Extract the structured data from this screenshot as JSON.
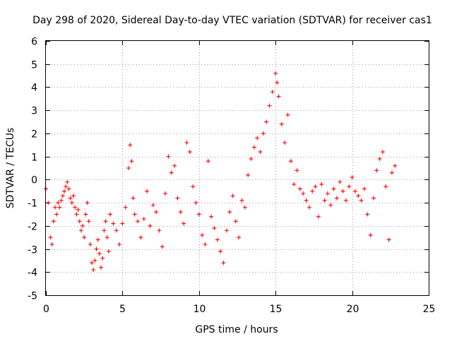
{
  "chart_data": {
    "type": "scatter",
    "title": "Day 298 of 2020, Sidereal Day-to-day VTEC variation (SDTVAR) for receiver cas1",
    "xlabel": "GPS time / hours",
    "ylabel": "SDTVAR / TECUs",
    "xlim": [
      0,
      25
    ],
    "ylim": [
      -5,
      6
    ],
    "xticks": [
      "0",
      "5",
      "10",
      "15",
      "20",
      "25"
    ],
    "yticks": [
      "-5",
      "-4",
      "-3",
      "-2",
      "-1",
      "0",
      "1",
      "2",
      "3",
      "4",
      "5",
      "6"
    ],
    "grid": true,
    "marker": "plus",
    "color": "#ff0000",
    "series": [
      {
        "name": "SDTVAR",
        "x": [
          0.0,
          0.15,
          0.3,
          0.4,
          0.5,
          0.6,
          0.7,
          0.8,
          0.9,
          1.0,
          1.1,
          1.2,
          1.3,
          1.4,
          1.5,
          1.6,
          1.7,
          1.8,
          1.9,
          2.0,
          2.1,
          2.2,
          2.3,
          2.4,
          2.5,
          2.6,
          2.7,
          2.8,
          2.9,
          3.0,
          3.1,
          3.2,
          3.3,
          3.4,
          3.5,
          3.6,
          3.7,
          3.8,
          3.9,
          4.0,
          4.1,
          4.2,
          4.4,
          4.6,
          4.8,
          5.0,
          5.2,
          5.4,
          5.5,
          5.6,
          5.7,
          5.8,
          6.0,
          6.2,
          6.4,
          6.6,
          6.8,
          7.0,
          7.2,
          7.4,
          7.6,
          7.8,
          8.0,
          8.2,
          8.4,
          8.6,
          8.8,
          9.0,
          9.2,
          9.4,
          9.6,
          9.8,
          10.0,
          10.2,
          10.4,
          10.6,
          10.8,
          11.0,
          11.2,
          11.4,
          11.6,
          11.8,
          12.0,
          12.2,
          12.4,
          12.6,
          12.8,
          13.0,
          13.2,
          13.4,
          13.6,
          13.8,
          14.0,
          14.2,
          14.4,
          14.6,
          14.8,
          15.0,
          15.1,
          15.2,
          15.4,
          15.6,
          15.8,
          16.0,
          16.2,
          16.4,
          16.6,
          16.8,
          17.0,
          17.2,
          17.4,
          17.6,
          17.8,
          18.0,
          18.2,
          18.4,
          18.6,
          18.8,
          19.0,
          19.2,
          19.4,
          19.6,
          19.8,
          20.0,
          20.2,
          20.4,
          20.6,
          20.8,
          21.0,
          21.2,
          21.4,
          21.6,
          21.8,
          22.0,
          22.2,
          22.4,
          22.6,
          22.8
        ],
        "y": [
          -0.4,
          -1.0,
          -2.5,
          -2.8,
          -1.8,
          -1.2,
          -1.5,
          -1.0,
          -1.2,
          -0.9,
          -0.7,
          -0.5,
          -0.3,
          -0.1,
          -0.4,
          -0.8,
          -1.0,
          -0.7,
          -1.2,
          -1.5,
          -1.3,
          -1.8,
          -2.2,
          -2.0,
          -2.5,
          -1.5,
          -1.0,
          -1.8,
          -2.8,
          -3.6,
          -3.9,
          -3.5,
          -3.0,
          -2.6,
          -3.2,
          -3.8,
          -3.4,
          -2.2,
          -1.8,
          -2.5,
          -3.1,
          -1.5,
          -1.9,
          -2.2,
          -2.8,
          -1.9,
          -1.2,
          0.5,
          1.5,
          0.8,
          -0.8,
          -1.5,
          -1.8,
          -2.5,
          -1.7,
          -0.5,
          -2.0,
          -1.1,
          -1.4,
          -2.2,
          -2.9,
          -0.6,
          1.0,
          0.3,
          0.6,
          -0.8,
          -1.4,
          -1.9,
          1.6,
          1.2,
          -0.3,
          -1.0,
          -1.5,
          -2.4,
          -2.8,
          0.8,
          -1.6,
          -2.1,
          -2.6,
          -3.1,
          -3.6,
          -2.2,
          -1.4,
          -0.7,
          -1.8,
          -2.5,
          -0.9,
          -1.2,
          0.2,
          0.9,
          1.4,
          1.8,
          1.2,
          2.0,
          2.5,
          3.2,
          3.8,
          4.6,
          4.2,
          3.6,
          2.4,
          1.6,
          2.8,
          0.8,
          -0.2,
          0.4,
          -0.4,
          -0.6,
          -0.9,
          -1.2,
          -0.5,
          -0.3,
          -1.6,
          -0.2,
          -0.9,
          -0.6,
          -1.1,
          -0.4,
          -0.8,
          -0.1,
          -0.5,
          -0.9,
          -0.3,
          0.1,
          -0.5,
          -0.7,
          -0.9,
          -0.4,
          -1.5,
          -2.4,
          -0.8,
          0.4,
          0.9,
          1.2,
          -0.3,
          -2.6,
          0.3,
          0.6
        ]
      }
    ]
  }
}
